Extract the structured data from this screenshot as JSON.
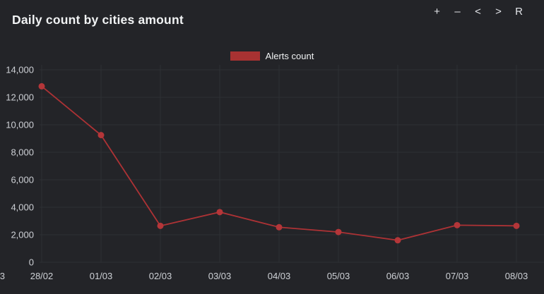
{
  "header": {
    "title": "Daily count by cities amount"
  },
  "toolbar": {
    "buttons": [
      {
        "label": "+",
        "action": "zoom-in"
      },
      {
        "label": "–",
        "action": "zoom-out"
      },
      {
        "label": "<",
        "action": "pan-left"
      },
      {
        "label": ">",
        "action": "pan-right"
      },
      {
        "label": "R",
        "action": "reset"
      }
    ]
  },
  "colors": {
    "background": "#232428",
    "gridline": "#2e3034",
    "tick_text": "#ced1d6",
    "title_text": "#f1f3f4",
    "series_red": "#ad3235",
    "marker_red": "#b43639",
    "legend_swatch": "#a83232"
  },
  "chart_data": {
    "type": "line",
    "title": "Daily count by cities amount",
    "legend_position": "top-center",
    "grid": true,
    "categories": [
      "28/02",
      "01/03",
      "02/03",
      "03/03",
      "04/03",
      "05/03",
      "06/03",
      "07/03",
      "08/03"
    ],
    "clipped_left_tick_fragment": "3",
    "series": [
      {
        "name": "Alerts count",
        "values": [
          12800,
          9250,
          2650,
          3650,
          2550,
          2200,
          1600,
          2700,
          2650
        ]
      }
    ],
    "xlabel": "",
    "ylabel": "",
    "ylim": [
      0,
      14000
    ],
    "y_ticks": [
      0,
      2000,
      4000,
      6000,
      8000,
      10000,
      12000,
      14000
    ],
    "y_tick_labels": [
      "0",
      "2,000",
      "4,000",
      "6,000",
      "8,000",
      "10,000",
      "12,000",
      "14,000"
    ]
  }
}
